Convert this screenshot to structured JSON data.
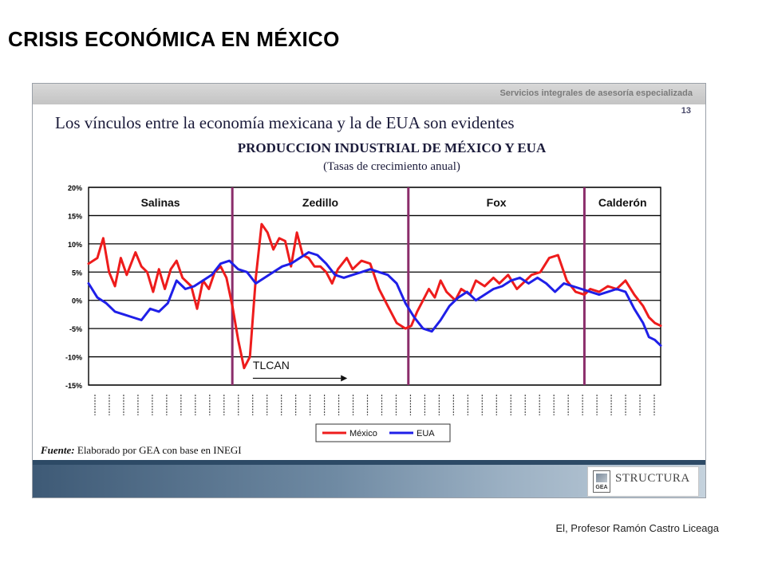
{
  "page_title": "CRISIS ECONÓMICA EN MÉXICO",
  "slide": {
    "header_text": "Servicios integrales de asesoría especializada",
    "number": "13",
    "heading": "Los vínculos entre la economía mexicana y la de EUA son evidentes",
    "source_label": "Fuente:",
    "source_text": "Elaborado por GEA con base en INEGI",
    "logo_gea": "GEA",
    "logo_structura": "STRUCTURA"
  },
  "author": "El, Profesor Ramón Castro Liceaga",
  "colors": {
    "mexico": "#ee1c1c",
    "eua": "#1f1fe8",
    "divider": "#8b2d6b",
    "grid": "#000000"
  },
  "chart_data": {
    "type": "line",
    "title": "PRODUCCION INDUSTRIAL DE MÉXICO Y EUA",
    "subtitle": "(Tasas de crecimiento anual)",
    "ylim": [
      -15,
      20
    ],
    "y_ticks": [
      "20%",
      "15%",
      "10%",
      "5%",
      "0%",
      "-5%",
      "-10%",
      "-15%"
    ],
    "y_tick_values": [
      20,
      15,
      10,
      5,
      0,
      -5,
      -10,
      -15
    ],
    "x_range": [
      1990.0,
      2009.5
    ],
    "periods": [
      {
        "label": "Salinas",
        "start": 1990.0,
        "end": 1994.9
      },
      {
        "label": "Zedillo",
        "start": 1994.9,
        "end": 2000.9
      },
      {
        "label": "Fox",
        "start": 2000.9,
        "end": 2006.9
      },
      {
        "label": "Calderón",
        "start": 2006.9,
        "end": 2009.5
      }
    ],
    "annotation": "TLCAN",
    "legend": [
      "México",
      "EUA"
    ],
    "legend_position": "bottom",
    "series": [
      {
        "name": "México",
        "x": [
          1990.0,
          1990.3,
          1990.5,
          1990.7,
          1990.9,
          1991.1,
          1991.3,
          1991.6,
          1991.8,
          1992.0,
          1992.2,
          1992.4,
          1992.6,
          1992.8,
          1993.0,
          1993.2,
          1993.5,
          1993.7,
          1993.9,
          1994.1,
          1994.3,
          1994.5,
          1994.7,
          1994.9,
          1995.1,
          1995.3,
          1995.5,
          1995.7,
          1995.9,
          1996.1,
          1996.3,
          1996.5,
          1996.7,
          1996.9,
          1997.1,
          1997.3,
          1997.5,
          1997.7,
          1997.9,
          1998.1,
          1998.3,
          1998.5,
          1998.8,
          1999.0,
          1999.3,
          1999.6,
          1999.9,
          2000.2,
          2000.5,
          2000.8,
          2001.0,
          2001.2,
          2001.4,
          2001.6,
          2001.8,
          2002.0,
          2002.2,
          2002.5,
          2002.7,
          2003.0,
          2003.2,
          2003.5,
          2003.8,
          2004.0,
          2004.3,
          2004.6,
          2004.9,
          2005.1,
          2005.4,
          2005.7,
          2006.0,
          2006.3,
          2006.6,
          2006.9,
          2007.1,
          2007.4,
          2007.7,
          2008.0,
          2008.3,
          2008.6,
          2008.9,
          2009.1,
          2009.3,
          2009.5
        ],
        "values": [
          6.5,
          7.5,
          11.0,
          5.0,
          2.5,
          7.5,
          4.5,
          8.5,
          6.0,
          5.0,
          1.5,
          5.5,
          2.0,
          5.5,
          7.0,
          4.0,
          2.5,
          -1.5,
          3.5,
          2.0,
          5.0,
          6.0,
          4.0,
          -1.0,
          -7.0,
          -12.0,
          -10.0,
          4.0,
          13.5,
          12.0,
          9.0,
          11.0,
          10.5,
          6.0,
          12.0,
          8.0,
          7.5,
          6.0,
          6.0,
          5.0,
          3.0,
          5.5,
          7.5,
          5.5,
          7.0,
          6.5,
          2.0,
          -1.0,
          -4.0,
          -5.0,
          -4.5,
          -2.0,
          0.0,
          2.0,
          0.5,
          3.5,
          1.5,
          0.0,
          2.0,
          1.0,
          3.5,
          2.5,
          4.0,
          3.0,
          4.5,
          2.0,
          3.5,
          4.5,
          5.0,
          7.5,
          8.0,
          3.5,
          1.5,
          1.0,
          2.0,
          1.5,
          2.5,
          2.0,
          3.5,
          1.0,
          -1.0,
          -3.0,
          -4.0,
          -4.5
        ]
      },
      {
        "name": "EUA",
        "x": [
          1990.0,
          1990.3,
          1990.6,
          1990.9,
          1991.2,
          1991.5,
          1991.8,
          1992.1,
          1992.4,
          1992.7,
          1993.0,
          1993.3,
          1993.6,
          1993.9,
          1994.2,
          1994.5,
          1994.8,
          1995.1,
          1995.4,
          1995.7,
          1996.0,
          1996.3,
          1996.6,
          1996.9,
          1997.2,
          1997.5,
          1997.8,
          1998.1,
          1998.4,
          1998.7,
          1999.0,
          1999.3,
          1999.6,
          1999.9,
          2000.2,
          2000.5,
          2000.8,
          2001.1,
          2001.4,
          2001.7,
          2002.0,
          2002.3,
          2002.6,
          2002.9,
          2003.2,
          2003.5,
          2003.8,
          2004.1,
          2004.4,
          2004.7,
          2005.0,
          2005.3,
          2005.6,
          2005.9,
          2006.2,
          2006.5,
          2006.8,
          2007.1,
          2007.4,
          2007.7,
          2008.0,
          2008.3,
          2008.6,
          2008.9,
          2009.1,
          2009.3,
          2009.5
        ],
        "values": [
          3.0,
          0.5,
          -0.5,
          -2.0,
          -2.5,
          -3.0,
          -3.5,
          -1.5,
          -2.0,
          -0.5,
          3.5,
          2.0,
          2.5,
          3.5,
          4.5,
          6.5,
          7.0,
          5.5,
          5.0,
          3.0,
          4.0,
          5.0,
          6.0,
          6.5,
          7.5,
          8.5,
          8.0,
          6.5,
          4.5,
          4.0,
          4.5,
          5.0,
          5.5,
          5.0,
          4.5,
          3.0,
          -0.5,
          -3.0,
          -5.0,
          -5.5,
          -3.5,
          -1.0,
          0.5,
          1.5,
          0.0,
          1.0,
          2.0,
          2.5,
          3.5,
          4.0,
          3.0,
          4.0,
          3.0,
          1.5,
          3.0,
          2.5,
          2.0,
          1.5,
          1.0,
          1.5,
          2.0,
          1.5,
          -1.5,
          -4.0,
          -6.5,
          -7.0,
          -8.0
        ]
      }
    ]
  }
}
